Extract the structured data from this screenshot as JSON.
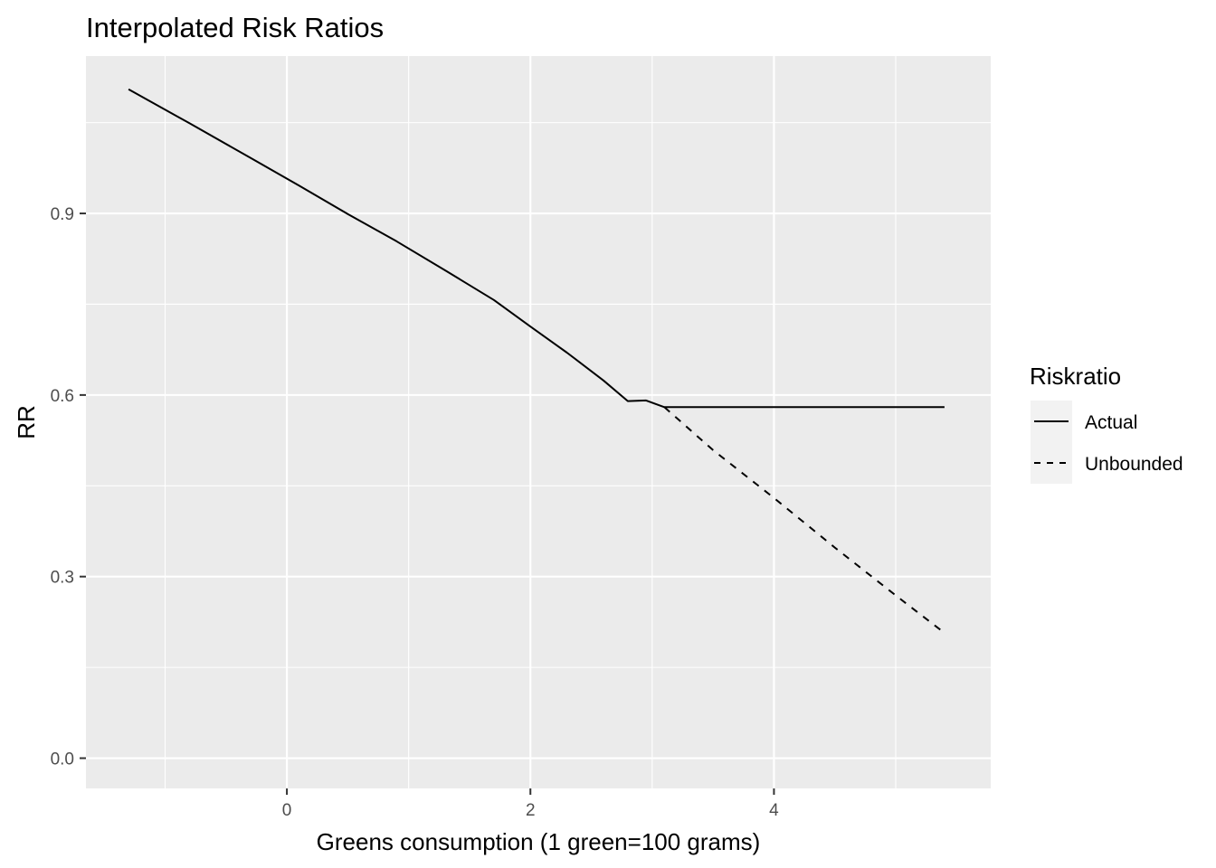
{
  "chart_data": {
    "type": "line",
    "title": "Interpolated Risk Ratios",
    "xlabel": "Greens consumption (1 green=100 grams)",
    "ylabel": "RR",
    "xlim": [
      -1.65,
      5.78
    ],
    "ylim": [
      -0.05,
      1.16
    ],
    "x_ticks": [
      0,
      2,
      4
    ],
    "x_minor_ticks": [
      -1,
      1,
      3,
      5
    ],
    "y_ticks": [
      0.0,
      0.3,
      0.6,
      0.9
    ],
    "y_minor_ticks": [
      0.15,
      0.45,
      0.75,
      1.05
    ],
    "x_tick_labels": [
      "0",
      "2",
      "4"
    ],
    "y_tick_labels": [
      "0.0",
      "0.3",
      "0.6",
      "0.9"
    ],
    "grid": true,
    "legend": {
      "title": "Riskratio",
      "position": "right",
      "entries": [
        "Actual",
        "Unbounded"
      ]
    },
    "series": [
      {
        "name": "Actual",
        "line_style": "solid",
        "color": "#000000",
        "x": [
          -1.3,
          -0.8,
          -0.3,
          0.1,
          0.5,
          0.9,
          1.3,
          1.7,
          2.0,
          2.3,
          2.6,
          2.8,
          2.95,
          3.1,
          3.5,
          4.0,
          4.5,
          5.0,
          5.4
        ],
        "y": [
          1.105,
          1.049,
          0.992,
          0.946,
          0.899,
          0.854,
          0.806,
          0.757,
          0.713,
          0.67,
          0.624,
          0.59,
          0.591,
          0.58,
          0.58,
          0.58,
          0.58,
          0.58,
          0.58
        ]
      },
      {
        "name": "Unbounded",
        "line_style": "dashed",
        "color": "#000000",
        "x": [
          3.1,
          3.5,
          4.0,
          4.5,
          5.0,
          5.4
        ],
        "y": [
          0.58,
          0.509,
          0.43,
          0.348,
          0.269,
          0.207
        ]
      }
    ]
  },
  "colors": {
    "panel_background": "#ebebeb",
    "grid_line": "#ffffff",
    "legend_key_background": "#f2f2f2",
    "tick_label": "#4d4d4d"
  }
}
